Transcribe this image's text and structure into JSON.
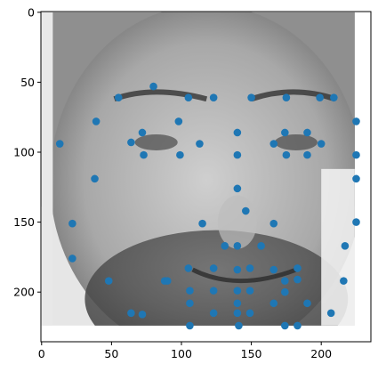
{
  "chart_data": {
    "type": "scatter",
    "title": "",
    "xlabel": "",
    "ylabel": "",
    "xlim": [
      -0.5,
      235.5
    ],
    "ylim": [
      235.5,
      -0.5
    ],
    "y_inverted": true,
    "grid": false,
    "legend": "none",
    "background_image": "grayscale-face-photo",
    "image_extent": [
      0,
      224,
      224,
      0
    ],
    "x_ticks": [
      0,
      50,
      100,
      150,
      200
    ],
    "y_ticks": [
      0,
      50,
      100,
      150,
      200
    ],
    "x_tick_labels": [
      "0",
      "50",
      "100",
      "150",
      "200"
    ],
    "y_tick_labels": [
      "0",
      "50",
      "100",
      "150",
      "200"
    ],
    "series": [
      {
        "color": "#1f77b4",
        "points": [
          [
            80,
            53
          ],
          [
            55,
            61
          ],
          [
            105,
            61
          ],
          [
            123,
            61
          ],
          [
            150,
            61
          ],
          [
            175,
            61
          ],
          [
            199,
            61
          ],
          [
            209,
            61
          ],
          [
            39,
            78
          ],
          [
            98,
            78
          ],
          [
            225,
            78
          ],
          [
            72,
            86
          ],
          [
            140,
            86
          ],
          [
            174,
            86
          ],
          [
            190,
            86
          ],
          [
            13,
            94
          ],
          [
            64,
            93
          ],
          [
            113,
            94
          ],
          [
            166,
            94
          ],
          [
            200,
            94
          ],
          [
            73,
            102
          ],
          [
            99,
            102
          ],
          [
            140,
            102
          ],
          [
            175,
            102
          ],
          [
            190,
            102
          ],
          [
            225,
            102
          ],
          [
            38,
            119
          ],
          [
            225,
            119
          ],
          [
            140,
            126
          ],
          [
            146,
            142
          ],
          [
            22,
            151
          ],
          [
            115,
            151
          ],
          [
            166,
            151
          ],
          [
            225,
            150
          ],
          [
            131,
            167
          ],
          [
            140,
            167
          ],
          [
            157,
            167
          ],
          [
            217,
            167
          ],
          [
            22,
            176
          ],
          [
            105,
            183
          ],
          [
            123,
            183
          ],
          [
            140,
            184
          ],
          [
            149,
            183
          ],
          [
            166,
            184
          ],
          [
            183,
            183
          ],
          [
            48,
            192
          ],
          [
            88,
            192
          ],
          [
            90,
            192
          ],
          [
            174,
            192
          ],
          [
            183,
            191
          ],
          [
            216,
            192
          ],
          [
            106,
            199
          ],
          [
            123,
            199
          ],
          [
            140,
            199
          ],
          [
            149,
            199
          ],
          [
            174,
            200
          ],
          [
            106,
            208
          ],
          [
            140,
            208
          ],
          [
            166,
            208
          ],
          [
            190,
            208
          ],
          [
            64,
            215
          ],
          [
            72,
            216
          ],
          [
            123,
            215
          ],
          [
            140,
            215
          ],
          [
            149,
            215
          ],
          [
            207,
            215
          ],
          [
            106,
            224
          ],
          [
            141,
            224
          ],
          [
            174,
            224
          ],
          [
            183,
            224
          ]
        ]
      }
    ]
  }
}
